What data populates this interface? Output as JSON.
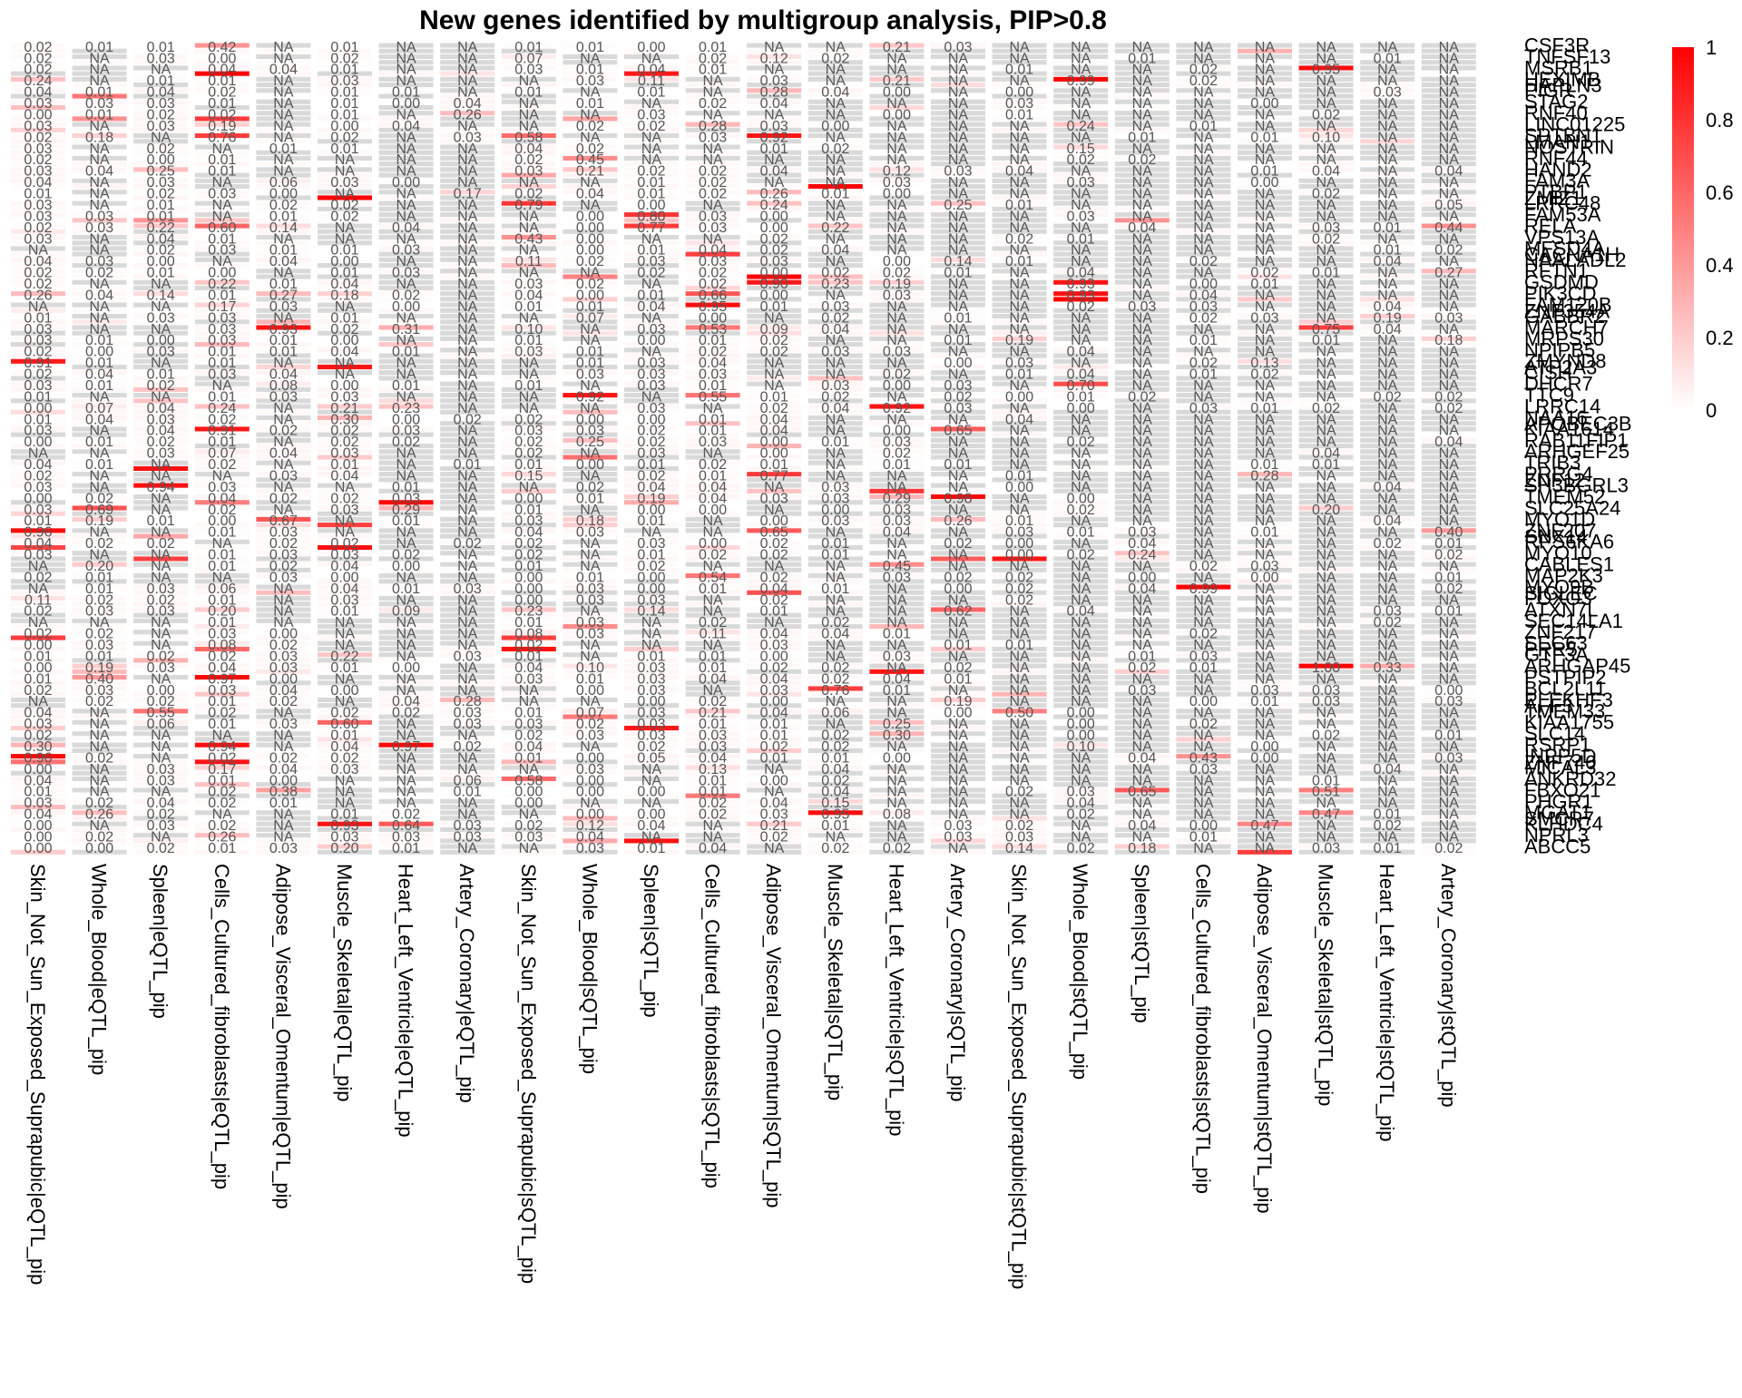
{
  "chart_data": {
    "type": "heatmap",
    "title": "New genes identified by multigroup analysis, PIP>0.8",
    "columns": [
      "Skin_Not_Sun_Exposed_Suprapubic|eQTL_pip",
      "Whole_Blood|eQTL_pip",
      "Spleen|eQTL_pip",
      "Cells_Cultured_fibroblasts|eQTL_pip",
      "Adipose_Visceral_Omentum|eQTL_pip",
      "Muscle_Skeletal|eQTL_pip",
      "Heart_Left_Ventricle|eQTL_pip",
      "Artery_Coronary|eQTL_pip",
      "Skin_Not_Sun_Exposed_Suprapubic|sQTL_pip",
      "Whole_Blood|sQTL_pip",
      "Spleen|sQTL_pip",
      "Cells_Cultured_fibroblasts|sQTL_pip",
      "Adipose_Visceral_Omentum|sQTL_pip",
      "Muscle_Skeletal|sQTL_pip",
      "Heart_Left_Ventricle|sQTL_pip",
      "Artery_Coronary|sQTL_pip",
      "Skin_Not_Sun_Exposed_Suprapubic|stQTL_pip",
      "Whole_Blood|stQTL_pip",
      "Spleen|stQTL_pip",
      "Cells_Cultured_fibroblasts|stQTL_pip",
      "Adipose_Visceral_Omentum|stQTL_pip",
      "Muscle_Skeletal|stQTL_pip",
      "Heart_Left_Ventricle|stQTL_pip",
      "Artery_Coronary|stQTL_pip"
    ],
    "row_count": 144,
    "row_labels": [
      {
        "row": 1,
        "label": "CSF3R"
      },
      {
        "row": 3,
        "label": "TNFSF13"
      },
      {
        "row": 5,
        "label": "MSRB1"
      },
      {
        "row": 7,
        "label": "HEXIMB"
      },
      {
        "row": 9,
        "label": "PIGR"
      },
      {
        "row": 11,
        "label": "STAG2"
      },
      {
        "row": 13,
        "label": "RNF40"
      },
      {
        "row": 15,
        "label": "LINC01225"
      },
      {
        "row": 17,
        "label": "SPTBN1"
      },
      {
        "row": 19,
        "label": "NOSTRIN"
      },
      {
        "row": 21,
        "label": "RNF44"
      },
      {
        "row": 23,
        "label": "HAND2"
      },
      {
        "row": 25,
        "label": "FAM3A"
      },
      {
        "row": 27,
        "label": "PTBP1"
      },
      {
        "row": 29,
        "label": "LRRC48"
      },
      {
        "row": 31,
        "label": "FAM53A"
      },
      {
        "row": 33,
        "label": "RELA"
      },
      {
        "row": 35,
        "label": "VPS13A"
      },
      {
        "row": 37,
        "label": "MFSD4A"
      },
      {
        "row": 39,
        "label": "NAALADL2"
      },
      {
        "row": 41,
        "label": "RFTN1"
      },
      {
        "row": 43,
        "label": "GSDMD"
      },
      {
        "row": 45,
        "label": "PIK3CD"
      },
      {
        "row": 47,
        "label": "FAM120B"
      },
      {
        "row": 49,
        "label": "GABBR2"
      },
      {
        "row": 51,
        "label": "MARCH7"
      },
      {
        "row": 53,
        "label": "MRPS30"
      },
      {
        "row": 55,
        "label": "NPIPB5"
      },
      {
        "row": 57,
        "label": "ZMYND8"
      },
      {
        "row": 59,
        "label": "CISH"
      },
      {
        "row": 61,
        "label": "DHCR7"
      },
      {
        "row": 63,
        "label": "TTC9"
      },
      {
        "row": 65,
        "label": "LRRC14"
      },
      {
        "row": 67,
        "label": "NAA16"
      },
      {
        "row": 69,
        "label": "KIAA1614"
      },
      {
        "row": 71,
        "label": "RAB11FIP1"
      },
      {
        "row": 73,
        "label": "ARHGEF25"
      },
      {
        "row": 75,
        "label": "TRIB3"
      },
      {
        "row": 77,
        "label": "PRRG4"
      },
      {
        "row": 79,
        "label": "SH3BGRL3"
      },
      {
        "row": 81,
        "label": "TMEM52"
      },
      {
        "row": 83,
        "label": "SLC25A24"
      },
      {
        "row": 85,
        "label": "MYO1D"
      },
      {
        "row": 87,
        "label": "ZNF207"
      },
      {
        "row": 89,
        "label": "RPS6KA6"
      },
      {
        "row": 91,
        "label": "MYO10"
      },
      {
        "row": 93,
        "label": "CABLES1"
      },
      {
        "row": 95,
        "label": "MAP2K3"
      },
      {
        "row": 97,
        "label": "MYO9B"
      },
      {
        "row": 99,
        "label": "FOXO3"
      },
      {
        "row": 101,
        "label": "ATXN7L"
      },
      {
        "row": 103,
        "label": "SEC14LA1"
      },
      {
        "row": 105,
        "label": "ZNF217"
      },
      {
        "row": 107,
        "label": "SEC63"
      },
      {
        "row": 109,
        "label": "GTF3A"
      },
      {
        "row": 111,
        "label": "ARHGAP45"
      },
      {
        "row": 113,
        "label": "PSTPIP2"
      },
      {
        "row": 115,
        "label": "BCL2L11"
      },
      {
        "row": 117,
        "label": "PLEKHF3"
      },
      {
        "row": 119,
        "label": "TMEM33"
      },
      {
        "row": 121,
        "label": "KIAA1755"
      },
      {
        "row": 123,
        "label": "SLC14"
      },
      {
        "row": 125,
        "label": "RSRP1"
      },
      {
        "row": 127,
        "label": "INPP5D"
      },
      {
        "row": 129,
        "label": "MICAL3"
      },
      {
        "row": 131,
        "label": "ANKRD32"
      },
      {
        "row": 133,
        "label": "FBXO21"
      },
      {
        "row": 135,
        "label": "PHGR1"
      },
      {
        "row": 137,
        "label": "MGAT1"
      },
      {
        "row": 139,
        "label": "KLHDC4"
      },
      {
        "row": 141,
        "label": "NPRL3"
      },
      {
        "row": 143,
        "label": "ABCC5"
      }
    ],
    "extra_row_labels": [
      "HAPLN3",
      "LMAN1",
      "ZMIZ1",
      "CACNA1H",
      "ZNF354A",
      "ATP2A3",
      "APOBEC3B",
      "ZNF12",
      "SNX14",
      "SIGLEC",
      "PRR5",
      "AFF3",
      "ZNF740",
      "SMCR7"
    ],
    "na_label": "NA",
    "value_format": "0.00",
    "color_scale": {
      "min": 0,
      "max": 1,
      "low_color": "#ffffff",
      "high_color": "#ff0000",
      "na_color": "#d9d9d9"
    },
    "legend": {
      "position": "right",
      "ticks": [
        "0",
        "0.2",
        "0.4",
        "0.6",
        "0.8",
        "1"
      ]
    }
  }
}
